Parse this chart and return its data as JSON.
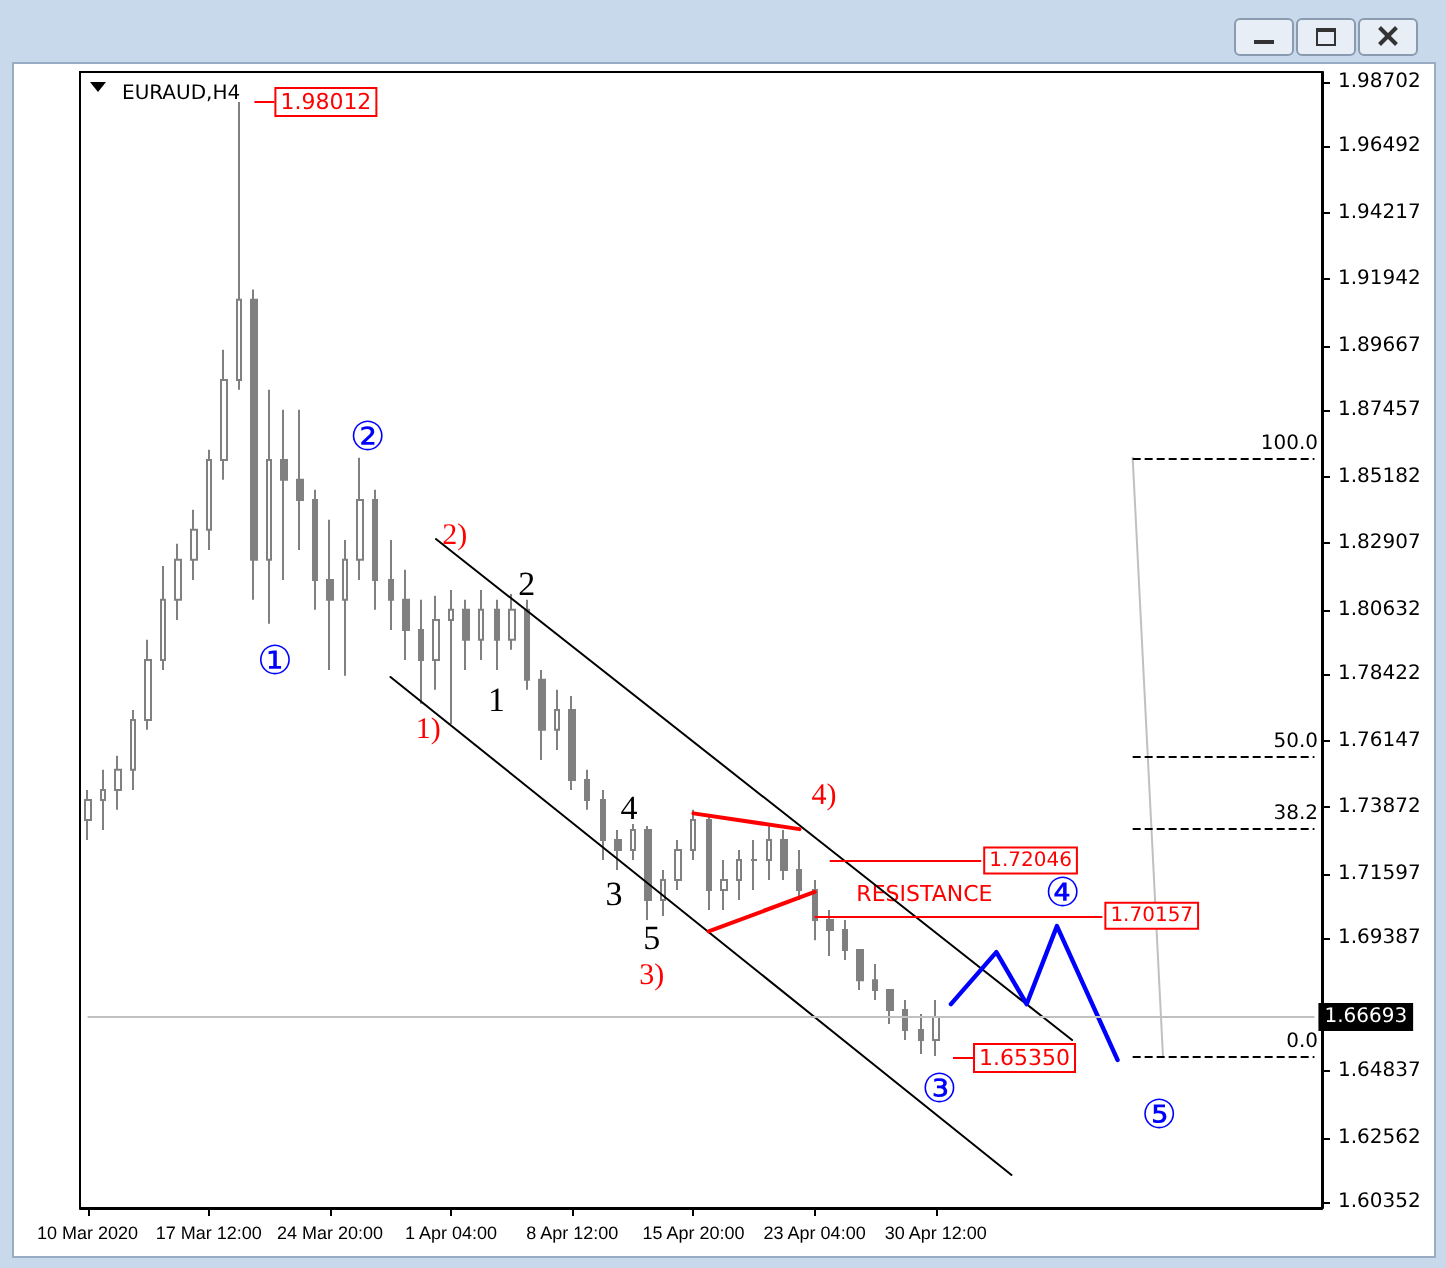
{
  "chart_data": {
    "type": "candlestick",
    "title": "EURAUD,H4",
    "color": "#808080",
    "grid": false,
    "categories": [
      "10 Mar 2020",
      null,
      null,
      null,
      null,
      null,
      null,
      null,
      "17 Mar 12:00",
      null,
      null,
      null,
      null,
      null,
      null,
      null,
      "24 Mar 20:00",
      null,
      null,
      null,
      null,
      null,
      null,
      null,
      "1 Apr 04:00",
      null,
      null,
      null,
      null,
      null,
      null,
      null,
      "8 Apr 12:00",
      null,
      null,
      null,
      null,
      null,
      null,
      null,
      "15 Apr 20:00",
      null,
      null,
      null,
      null,
      null,
      null,
      null,
      "23 Apr 04:00",
      null,
      null,
      null,
      null,
      null,
      null,
      null,
      "30 Apr 12:00",
      null,
      null,
      null,
      null,
      null,
      null,
      null,
      null,
      null,
      null,
      null,
      null,
      null,
      null,
      null,
      null,
      null,
      null,
      null,
      null,
      null,
      null,
      null,
      null,
      null
    ],
    "ohlc": [
      [
        1.7343,
        1.7446,
        1.7275,
        1.7412
      ],
      [
        1.7412,
        1.7515,
        1.7309,
        1.7446
      ],
      [
        1.7446,
        1.7563,
        1.7378,
        1.7515
      ],
      [
        1.7515,
        1.772,
        1.7446,
        1.7686
      ],
      [
        1.7686,
        1.796,
        1.7652,
        1.7891
      ],
      [
        1.7891,
        1.8213,
        1.7857,
        1.8097
      ],
      [
        1.8097,
        1.8289,
        1.8028,
        1.8234
      ],
      [
        1.8234,
        1.8405,
        1.8165,
        1.8337
      ],
      [
        1.8337,
        1.8611,
        1.8268,
        1.8576
      ],
      [
        1.8576,
        1.8953,
        1.8508,
        1.885
      ],
      [
        1.885,
        1.98012,
        1.8816,
        1.9124
      ],
      [
        1.9124,
        1.9159,
        1.8097,
        1.8234
      ],
      [
        1.8234,
        1.8816,
        1.8015,
        1.8576
      ],
      [
        1.8576,
        1.8748,
        1.8165,
        1.8508
      ],
      [
        1.8508,
        1.8748,
        1.8268,
        1.8439
      ],
      [
        1.8439,
        1.8474,
        1.8063,
        1.8165
      ],
      [
        1.8165,
        1.8371,
        1.7857,
        1.8097
      ],
      [
        1.8097,
        1.8302,
        1.7837,
        1.8234
      ],
      [
        1.8234,
        1.8583,
        1.8165,
        1.8439
      ],
      [
        1.8439,
        1.8474,
        1.8063,
        1.8165
      ],
      [
        1.8165,
        1.8302,
        1.7994,
        1.8097
      ],
      [
        1.8097,
        1.82,
        1.7891,
        1.7994
      ],
      [
        1.7994,
        1.8097,
        1.7741,
        1.7891
      ],
      [
        1.7891,
        1.8111,
        1.7789,
        1.8028
      ],
      [
        1.8028,
        1.8131,
        1.7672,
        1.8063
      ],
      [
        1.8063,
        1.8097,
        1.7857,
        1.796
      ],
      [
        1.796,
        1.8131,
        1.7891,
        1.8063
      ],
      [
        1.8063,
        1.8097,
        1.7857,
        1.796
      ],
      [
        1.796,
        1.8117,
        1.7926,
        1.8063
      ],
      [
        1.8063,
        1.8097,
        1.7789,
        1.7823
      ],
      [
        1.7823,
        1.7857,
        1.7549,
        1.7652
      ],
      [
        1.7652,
        1.7789,
        1.7583,
        1.772
      ],
      [
        1.772,
        1.7768,
        1.7446,
        1.748
      ],
      [
        1.748,
        1.7515,
        1.7378,
        1.7412
      ],
      [
        1.7412,
        1.7446,
        1.7206,
        1.7275
      ],
      [
        1.7275,
        1.7309,
        1.7172,
        1.7241
      ],
      [
        1.7241,
        1.733,
        1.7206,
        1.7309
      ],
      [
        1.7309,
        1.7323,
        1.7001,
        1.7069
      ],
      [
        1.7069,
        1.7172,
        1.7015,
        1.7138
      ],
      [
        1.7138,
        1.7275,
        1.7104,
        1.7241
      ],
      [
        1.7241,
        1.7378,
        1.7206,
        1.7343
      ],
      [
        1.7343,
        1.7357,
        1.7035,
        1.7104
      ],
      [
        1.7104,
        1.7206,
        1.7035,
        1.7138
      ],
      [
        1.7138,
        1.7241,
        1.7069,
        1.7206
      ],
      [
        1.7206,
        1.7275,
        1.7104,
        1.7206
      ],
      [
        1.7206,
        1.7323,
        1.7138,
        1.7275
      ],
      [
        1.7275,
        1.7309,
        1.7138,
        1.7172
      ],
      [
        1.7172,
        1.7241,
        1.7069,
        1.7104
      ],
      [
        1.7104,
        1.7138,
        1.6932,
        1.7001
      ],
      [
        1.7001,
        1.7035,
        1.6878,
        1.6967
      ],
      [
        1.6967,
        1.7001,
        1.6864,
        1.6898
      ],
      [
        1.6898,
        1.6898,
        1.6761,
        1.6795
      ],
      [
        1.6795,
        1.685,
        1.6727,
        1.6761
      ],
      [
        1.6761,
        1.6761,
        1.6645,
        1.6693
      ],
      [
        1.6693,
        1.6727,
        1.659,
        1.6624
      ],
      [
        1.6624,
        1.6679,
        1.6542,
        1.659
      ],
      [
        1.659,
        1.6727,
        1.6535,
        1.66693
      ],
      null,
      null,
      null,
      null,
      null,
      null,
      null,
      null,
      null,
      null,
      null,
      null,
      null,
      null,
      null,
      null,
      null,
      null,
      null,
      null,
      null,
      null,
      null,
      null,
      null
    ],
    "ylim": [
      1.6015,
      1.9904
    ],
    "yticks": [
      1.60352,
      1.62562,
      1.64837,
      {
        "value": 1.67112,
        "label": null
      },
      1.69387,
      1.71597,
      1.73872,
      1.76147,
      1.78422,
      1.80632,
      1.82907,
      1.85182,
      1.87457,
      1.89667,
      1.91942,
      1.94217,
      1.96492,
      1.98702
    ],
    "series": [
      {
        "type": "line",
        "color": "#000000",
        "values": [
          null,
          null,
          null,
          null,
          null,
          null,
          null,
          null,
          null,
          null,
          null,
          null,
          null,
          null,
          null,
          null,
          null,
          null,
          null,
          null,
          null,
          null,
          null,
          1.8305,
          null,
          null,
          null,
          null,
          null,
          null,
          null,
          null,
          null,
          null,
          null,
          null,
          null,
          null,
          null,
          null,
          null,
          null,
          null,
          null,
          null,
          null,
          null,
          null,
          null,
          null,
          null,
          null,
          null,
          null,
          null,
          null,
          null,
          null,
          null,
          null,
          null,
          null,
          null,
          null,
          null,
          1.659,
          null,
          null,
          null,
          null,
          null,
          null,
          null,
          null,
          null,
          null,
          null,
          null,
          null,
          null,
          null,
          null
        ]
      },
      {
        "type": "line",
        "color": "#000000",
        "values": [
          null,
          null,
          null,
          null,
          null,
          null,
          null,
          null,
          null,
          null,
          null,
          null,
          null,
          null,
          null,
          null,
          null,
          null,
          null,
          null,
          1.7833,
          null,
          null,
          null,
          null,
          null,
          null,
          null,
          null,
          null,
          null,
          null,
          null,
          null,
          null,
          null,
          null,
          null,
          null,
          null,
          null,
          null,
          null,
          null,
          null,
          null,
          null,
          null,
          null,
          null,
          null,
          null,
          null,
          null,
          null,
          null,
          null,
          null,
          null,
          null,
          null,
          1.6128,
          null,
          null,
          null,
          null,
          null,
          null,
          null,
          null,
          null,
          null,
          null,
          null,
          null,
          null,
          null,
          null,
          null,
          null,
          null,
          null
        ]
      },
      {
        "type": "line",
        "color": "#ff0000",
        "values": [
          null,
          null,
          null,
          null,
          null,
          null,
          null,
          null,
          null,
          null,
          null,
          null,
          null,
          null,
          null,
          null,
          null,
          null,
          null,
          null,
          null,
          null,
          null,
          null,
          null,
          null,
          null,
          null,
          null,
          null,
          null,
          null,
          null,
          null,
          null,
          null,
          null,
          null,
          null,
          null,
          1.7366,
          null,
          null,
          null,
          null,
          null,
          null,
          1.7312,
          null,
          null,
          null,
          null,
          null,
          null,
          null,
          null,
          null,
          null,
          null,
          null,
          null,
          null,
          null,
          null,
          null,
          null,
          null,
          null,
          null,
          null,
          null,
          null,
          null,
          null,
          null,
          null,
          null,
          null,
          null,
          null,
          null,
          null
        ]
      },
      {
        "type": "line",
        "color": "#ff0000",
        "values": [
          null,
          null,
          null,
          null,
          null,
          null,
          null,
          null,
          null,
          null,
          null,
          null,
          null,
          null,
          null,
          null,
          null,
          null,
          null,
          null,
          null,
          null,
          null,
          null,
          null,
          null,
          null,
          null,
          null,
          null,
          null,
          null,
          null,
          null,
          null,
          null,
          null,
          null,
          null,
          null,
          null,
          1.6962,
          null,
          null,
          null,
          null,
          null,
          null,
          1.7097,
          null,
          null,
          null,
          null,
          null,
          null,
          null,
          null,
          null,
          null,
          null,
          null,
          null,
          null,
          null,
          null,
          null,
          null,
          null,
          null,
          null,
          null,
          null,
          null,
          null,
          null,
          null,
          null,
          null,
          null,
          null,
          null,
          null
        ]
      },
      {
        "type": "line",
        "color": "#c0c0c0",
        "values": [
          null,
          null,
          null,
          null,
          null,
          null,
          null,
          null,
          null,
          null,
          null,
          null,
          null,
          null,
          null,
          null,
          null,
          null,
          null,
          null,
          null,
          null,
          null,
          null,
          null,
          null,
          null,
          null,
          null,
          null,
          null,
          null,
          null,
          null,
          null,
          null,
          null,
          null,
          null,
          null,
          null,
          null,
          null,
          null,
          null,
          null,
          null,
          null,
          null,
          null,
          null,
          null,
          null,
          null,
          null,
          null,
          null,
          null,
          null,
          null,
          null,
          null,
          null,
          null,
          null,
          null,
          null,
          null,
          null,
          1.8583,
          null,
          1.6535,
          null,
          null,
          null,
          null,
          null,
          null,
          null,
          null,
          null,
          null
        ]
      },
      {
        "type": "line",
        "color": "#0000ff",
        "values": [
          null,
          null,
          null,
          null,
          null,
          null,
          null,
          null,
          null,
          null,
          null,
          null,
          null,
          null,
          null,
          null,
          null,
          null,
          null,
          null,
          null,
          null,
          null,
          null,
          null,
          null,
          null,
          null,
          null,
          null,
          null,
          null,
          null,
          null,
          null,
          null,
          null,
          null,
          null,
          null,
          null,
          null,
          null,
          null,
          null,
          null,
          null,
          null,
          null,
          null,
          null,
          null,
          null,
          null,
          null,
          null,
          null,
          1.6713,
          null,
          null,
          1.6891,
          null,
          1.6713,
          null,
          1.698,
          null,
          null,
          null,
          1.6522,
          null,
          null,
          null,
          null,
          null,
          null,
          null,
          null,
          null,
          null,
          null,
          null,
          null
        ]
      }
    ],
    "ref_lines": [
      {
        "axis": "y",
        "value": 1.66693,
        "label": "1.66693",
        "color": "#c0c0c0"
      },
      {
        "axis": "y",
        "value": 1.72046,
        "label": "1.72046",
        "color": "#ff0000"
      },
      {
        "axis": "y",
        "value": 1.70157,
        "label": "1.70157",
        "color": "#ff0000"
      },
      {
        "axis": "y",
        "value": 1.8583,
        "color": "#000000",
        "line_style": "dashed"
      },
      {
        "axis": "y",
        "value": 1.7559,
        "color": "#000000",
        "line_style": "dashed"
      },
      {
        "axis": "y",
        "value": 1.7317,
        "color": "#000000",
        "line_style": "dashed"
      },
      {
        "axis": "y",
        "value": 1.6535,
        "color": "#000000",
        "line_style": "dashed"
      }
    ],
    "annotations": [
      "1.98012",
      "1.65350",
      "①",
      "②",
      "③",
      "④",
      "⑤",
      "1)",
      "2)",
      "3)",
      "4)",
      "1",
      "2",
      "3",
      "4",
      "5",
      "RESISTANCE",
      "100.0",
      "50.0",
      "38.2",
      "0.0"
    ]
  }
}
